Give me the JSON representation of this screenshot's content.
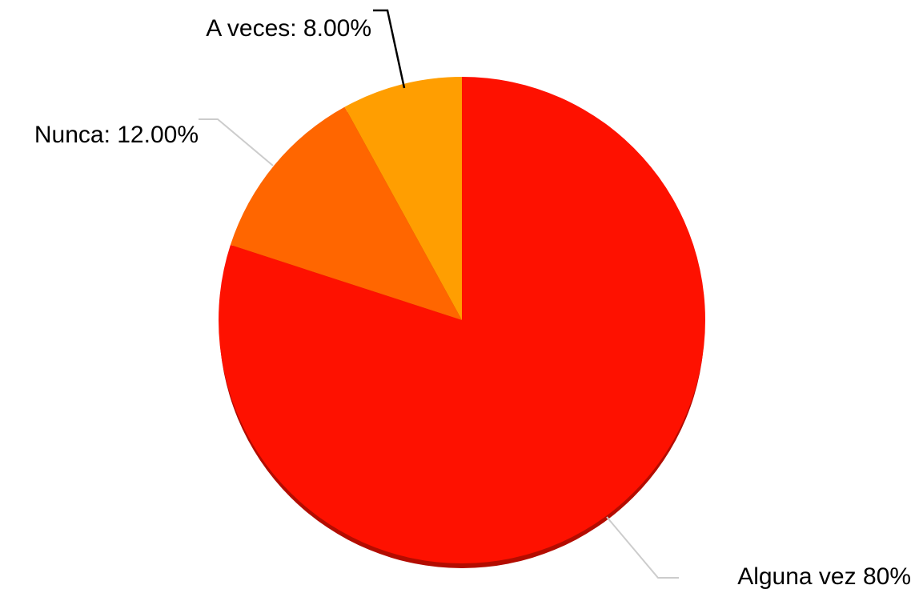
{
  "chart_data": {
    "type": "pie",
    "title": "",
    "slices": [
      {
        "name": "Alguna vez",
        "value": 80,
        "label": "Alguna vez 80%",
        "color": "#fe1100"
      },
      {
        "name": "Nunca",
        "value": 12,
        "label": "Nunca: 12.00%",
        "color": "#ff6600"
      },
      {
        "name": "A veces",
        "value": 8,
        "label": "A veces: 8.00%",
        "color": "#ff9e01"
      }
    ],
    "start_angle": "12 o'clock",
    "direction": "clockwise",
    "legend": "none",
    "leader_line_colors": {
      "Alguna vez": "#cccccc",
      "Nunca": "#cccccc",
      "A veces": "#000000"
    }
  }
}
